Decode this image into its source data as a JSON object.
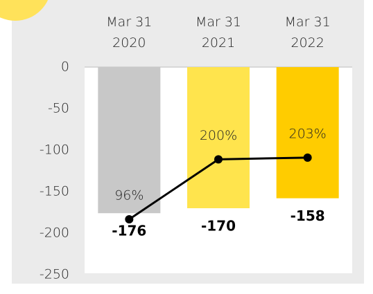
{
  "chart_data": {
    "type": "bar",
    "categories": [
      "Mar 31\n2020",
      "Mar 31\n2021",
      "Mar 31\n2022"
    ],
    "series": [
      {
        "type": "bar",
        "values": [
          -176,
          -170,
          -158
        ],
        "colors": [
          "#c8c8c8",
          "#ffe44d",
          "#ffcc00"
        ]
      },
      {
        "type": "line",
        "axis": "y2",
        "color": "#000000",
        "values": [
          96,
          200,
          203
        ],
        "value_labels": [
          "96%",
          "200%",
          "203%"
        ]
      }
    ],
    "ylim": [
      -250,
      0
    ],
    "yticks": [
      0,
      -50,
      -100,
      -150,
      -200,
      -250
    ],
    "y2lim": [
      0,
      360
    ]
  }
}
